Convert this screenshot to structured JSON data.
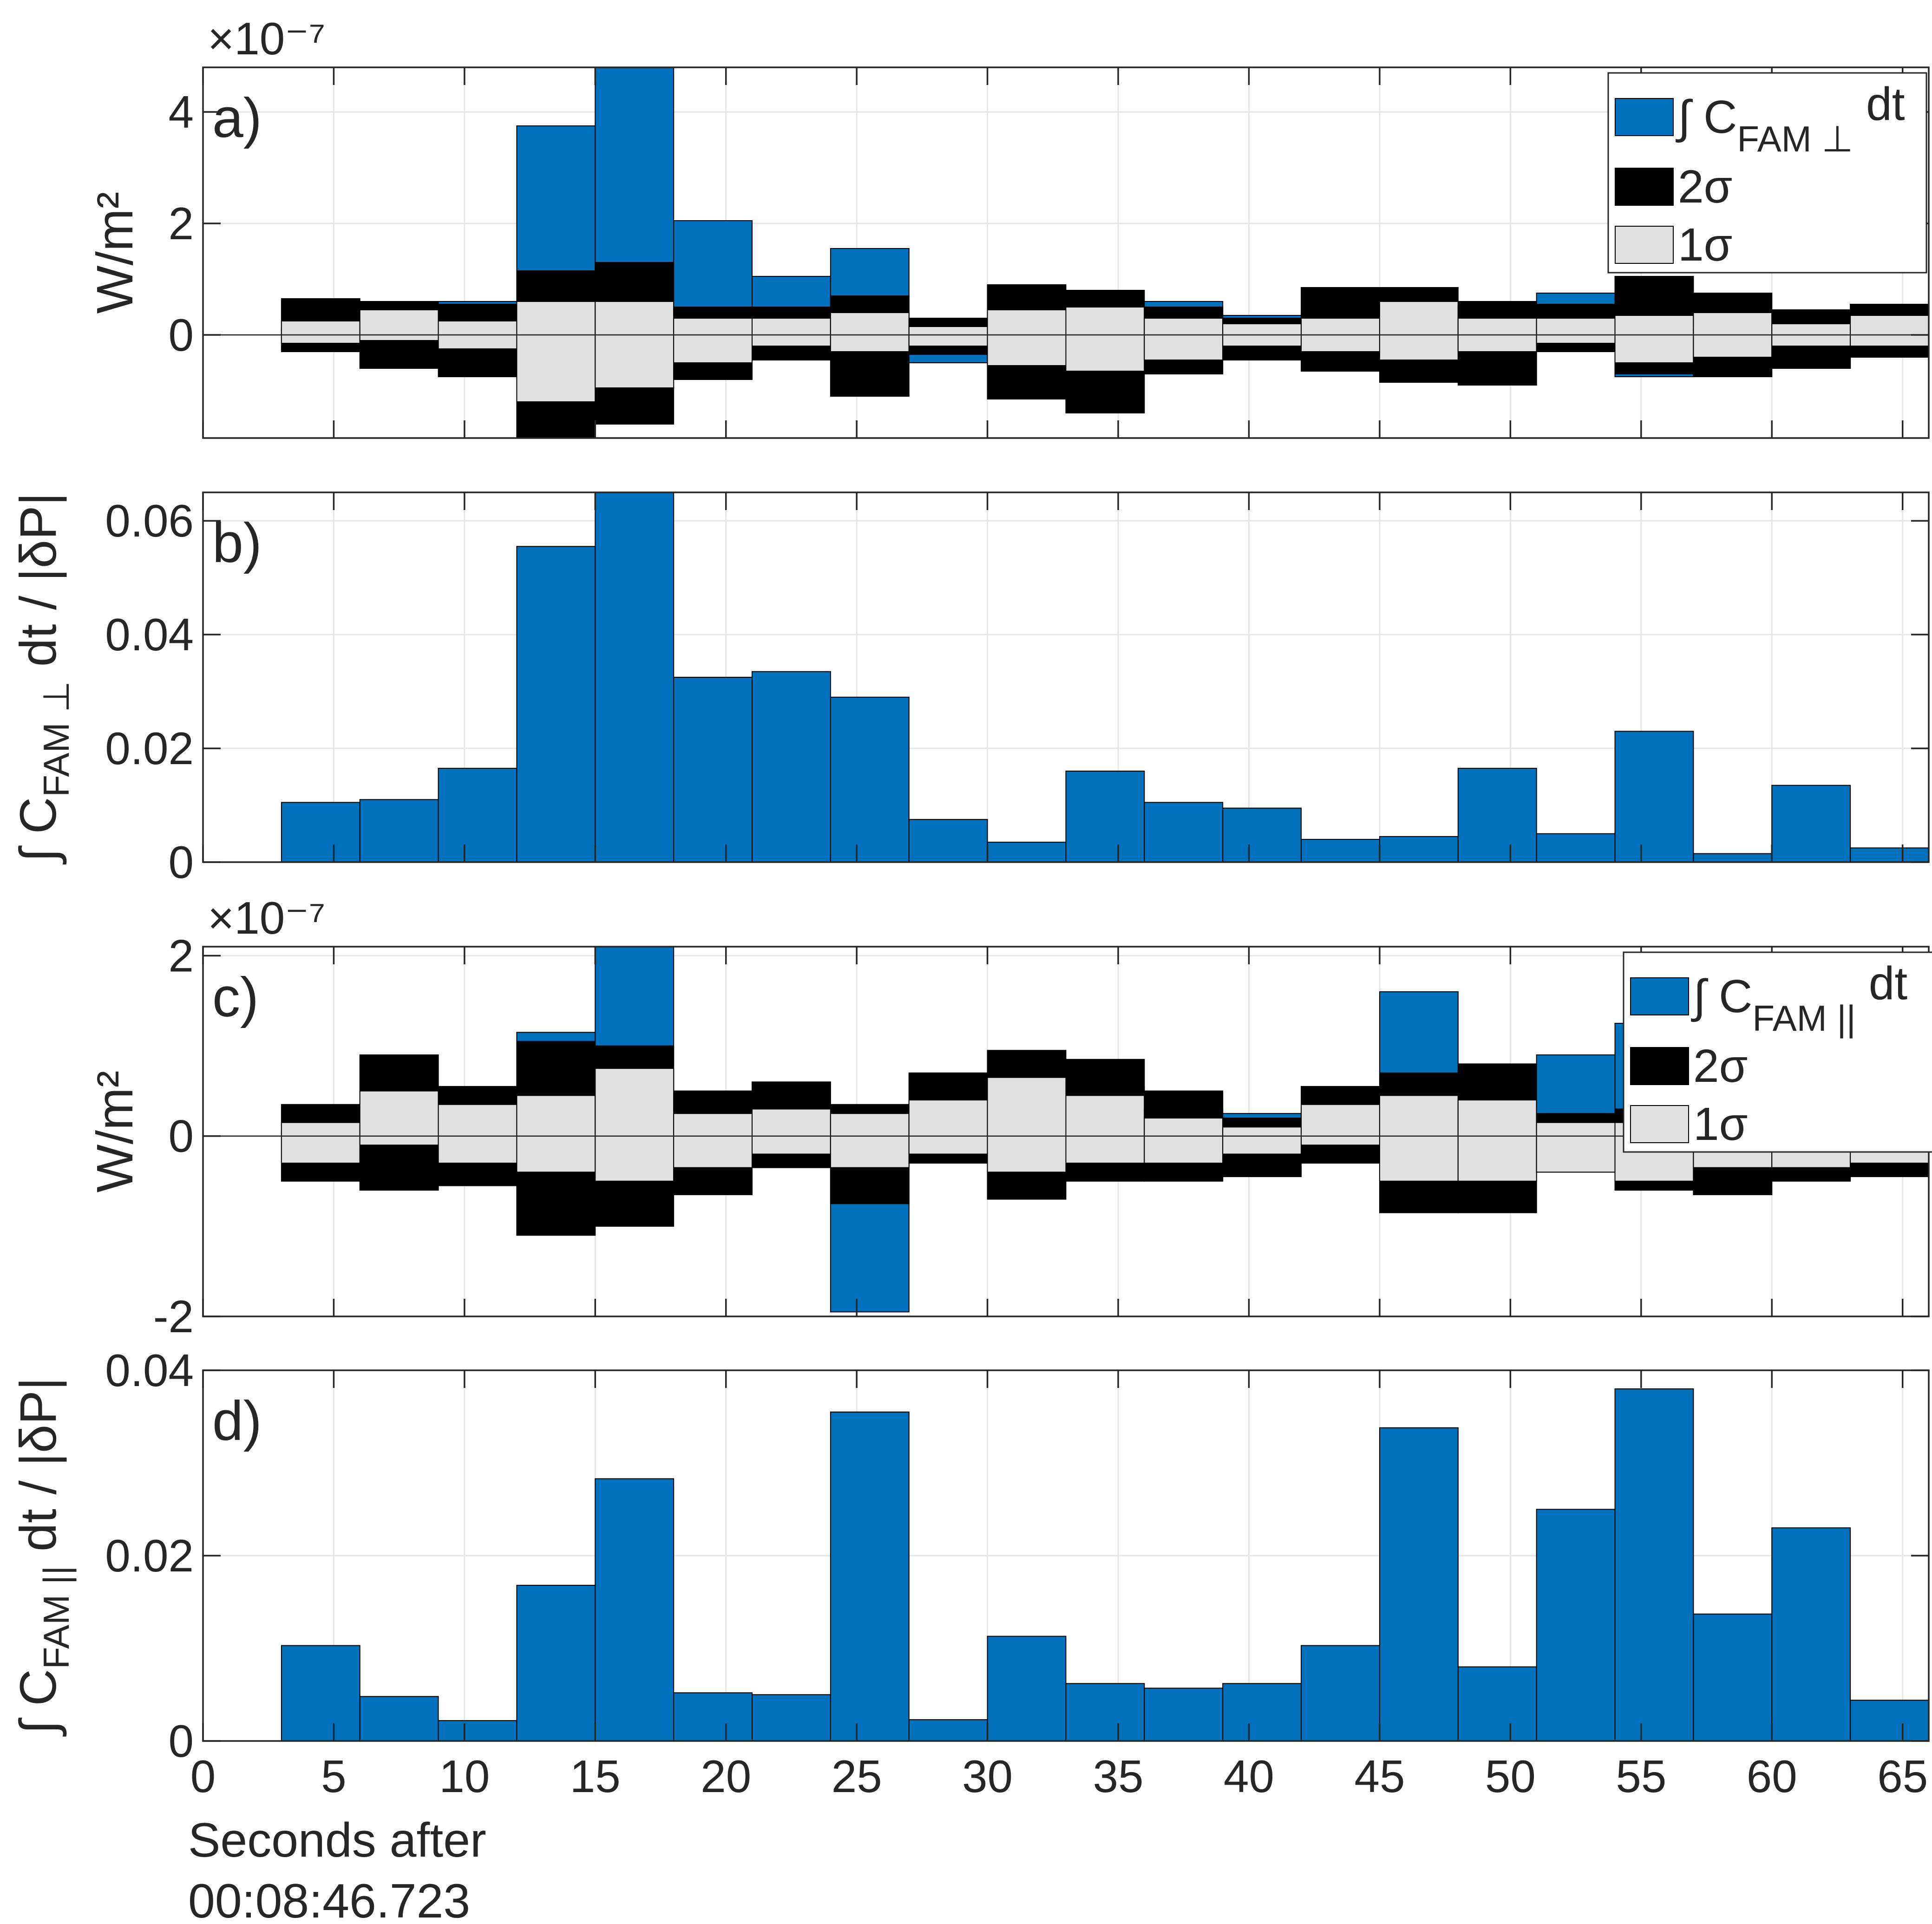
{
  "colors": {
    "flux": "#0072BD",
    "sigma2": "#000000",
    "sigma1": "#E0E0E0",
    "grid": "#E6E6E6",
    "axis": "#262626"
  },
  "chart_data": [
    {
      "type": "bar",
      "panel_label": "a)",
      "ylabel": "W/m²",
      "exponent_label": "×10⁻⁷",
      "xlim": [
        0,
        66
      ],
      "ylim": [
        -1.85,
        4.8
      ],
      "yticks": [
        0,
        2,
        4
      ],
      "ytick_labels": [
        "0",
        "2",
        "4"
      ],
      "bin_width": 3,
      "bin_starts": [
        3,
        6,
        9,
        12,
        15,
        18,
        21,
        24,
        27,
        30,
        33,
        36,
        39,
        42,
        45,
        48,
        51,
        54,
        57,
        60,
        63
      ],
      "values": [
        0.12,
        0.1,
        0.6,
        3.75,
        4.8,
        2.05,
        1.05,
        1.55,
        -0.5,
        0.3,
        0.25,
        0.6,
        0.35,
        0.2,
        -0.2,
        0.5,
        0.75,
        -0.75,
        0.1,
        -0.6,
        0.05
      ],
      "sigma2_upper": [
        0.65,
        0.6,
        0.55,
        1.15,
        1.3,
        0.5,
        0.5,
        0.7,
        0.3,
        0.9,
        0.8,
        0.5,
        0.3,
        0.85,
        0.85,
        0.6,
        0.55,
        1.05,
        0.75,
        0.45,
        0.55
      ],
      "sigma2_lower": [
        -0.3,
        -0.6,
        -0.75,
        -1.85,
        -1.6,
        -0.8,
        -0.45,
        -1.1,
        -0.35,
        -1.15,
        -1.4,
        -0.7,
        -0.45,
        -0.65,
        -0.85,
        -0.9,
        -0.3,
        -0.7,
        -0.75,
        -0.6,
        -0.4
      ],
      "sigma1_upper": [
        0.25,
        0.45,
        0.25,
        0.6,
        0.6,
        0.3,
        0.3,
        0.4,
        0.15,
        0.45,
        0.5,
        0.3,
        0.2,
        0.3,
        0.6,
        0.3,
        0.3,
        0.35,
        0.4,
        0.2,
        0.35
      ],
      "sigma1_lower": [
        -0.15,
        -0.1,
        -0.25,
        -1.2,
        -0.95,
        -0.5,
        -0.2,
        -0.3,
        -0.2,
        -0.55,
        -0.65,
        -0.45,
        -0.2,
        -0.3,
        -0.45,
        -0.3,
        -0.15,
        -0.5,
        -0.4,
        -0.2,
        -0.2
      ],
      "legend": {
        "flux": "∫ C",
        "flux_sub": "FAM ⊥",
        "flux_suffix": " dt",
        "sigma2": "2σ",
        "sigma1": "1σ",
        "position": "top-right"
      }
    },
    {
      "type": "bar",
      "panel_label": "b)",
      "ylabel_main": "∫ C",
      "ylabel_sub": "FAM ⊥",
      "ylabel_suffix": " dt / |δP|",
      "xlim": [
        0,
        66
      ],
      "ylim": [
        0,
        0.065
      ],
      "yticks": [
        0,
        0.02,
        0.04,
        0.06
      ],
      "ytick_labels": [
        "0",
        "0.02",
        "0.04",
        "0.06"
      ],
      "bin_width": 3,
      "bin_starts": [
        3,
        6,
        9,
        12,
        15,
        18,
        21,
        24,
        27,
        30,
        33,
        36,
        39,
        42,
        45,
        48,
        51,
        54,
        57,
        60,
        63
      ],
      "values": [
        0.0105,
        0.011,
        0.0165,
        0.0555,
        0.065,
        0.0325,
        0.0335,
        0.029,
        0.0075,
        0.0035,
        0.016,
        0.0105,
        0.0095,
        0.004,
        0.0045,
        0.0165,
        0.005,
        0.023,
        0.0015,
        0.0135,
        0.0025
      ]
    },
    {
      "type": "bar",
      "panel_label": "c)",
      "ylabel": "W/m²",
      "exponent_label": "×10⁻⁷",
      "xlim": [
        0,
        66
      ],
      "ylim": [
        -2.0,
        2.1
      ],
      "yticks": [
        -2,
        0,
        2
      ],
      "ytick_labels": [
        "-2",
        "0",
        "2"
      ],
      "bin_width": 3,
      "bin_starts": [
        3,
        6,
        9,
        12,
        15,
        18,
        21,
        24,
        27,
        30,
        33,
        36,
        39,
        42,
        45,
        48,
        51,
        54,
        57,
        60,
        63
      ],
      "values": [
        0.05,
        0.1,
        0.1,
        1.15,
        2.1,
        0.3,
        0.3,
        -1.95,
        0.2,
        0.35,
        0.55,
        0.3,
        0.25,
        0.25,
        1.6,
        0.4,
        0.9,
        1.25,
        0.4,
        0.2,
        0.2
      ],
      "sigma2_upper": [
        0.35,
        0.9,
        0.55,
        1.05,
        1.0,
        0.5,
        0.6,
        0.35,
        0.7,
        0.95,
        0.85,
        0.5,
        0.2,
        0.55,
        0.7,
        0.8,
        0.25,
        0.3,
        0.3,
        0.3,
        0.35
      ],
      "sigma2_lower": [
        -0.5,
        -0.6,
        -0.55,
        -1.1,
        -1.0,
        -0.65,
        -0.35,
        -0.75,
        -0.3,
        -0.7,
        -0.5,
        -0.5,
        -0.45,
        -0.3,
        -0.85,
        -0.85,
        -0.4,
        -0.6,
        -0.65,
        -0.5,
        -0.45
      ],
      "sigma1_upper": [
        0.15,
        0.5,
        0.35,
        0.45,
        0.75,
        0.25,
        0.3,
        0.25,
        0.4,
        0.65,
        0.45,
        0.2,
        0.1,
        0.35,
        0.45,
        0.4,
        0.15,
        0.15,
        0.15,
        0.15,
        0.2
      ],
      "sigma1_lower": [
        -0.3,
        -0.1,
        -0.3,
        -0.4,
        -0.5,
        -0.35,
        -0.2,
        -0.35,
        -0.2,
        -0.4,
        -0.3,
        -0.3,
        -0.2,
        -0.1,
        -0.5,
        -0.5,
        -0.4,
        -0.5,
        -0.35,
        -0.35,
        -0.3
      ],
      "legend": {
        "flux": "∫ C",
        "flux_sub": "FAM ||",
        "flux_suffix": " dt",
        "sigma2": "2σ",
        "sigma1": "1σ",
        "position": "top-right"
      }
    },
    {
      "type": "bar",
      "panel_label": "d)",
      "ylabel_main": "∫ C",
      "ylabel_sub": "FAM ||",
      "ylabel_suffix": " dt / |δP|",
      "xlim": [
        0,
        66
      ],
      "ylim": [
        0,
        0.04
      ],
      "yticks": [
        0,
        0.02,
        0.04
      ],
      "ytick_labels": [
        "0",
        "0.02",
        "0.04"
      ],
      "bin_width": 3,
      "bin_starts": [
        3,
        6,
        9,
        12,
        15,
        18,
        21,
        24,
        27,
        30,
        33,
        36,
        39,
        42,
        45,
        48,
        51,
        54,
        57,
        60,
        63
      ],
      "values": [
        0.0103,
        0.0048,
        0.0022,
        0.0168,
        0.0283,
        0.0052,
        0.005,
        0.0355,
        0.0023,
        0.0113,
        0.0062,
        0.0057,
        0.0062,
        0.0103,
        0.0338,
        0.008,
        0.025,
        0.038,
        0.0137,
        0.023,
        0.0044
      ],
      "xticks": [
        0,
        5,
        10,
        15,
        20,
        25,
        30,
        35,
        40,
        45,
        50,
        55,
        60,
        65
      ],
      "xtick_labels": [
        "0",
        "5",
        "10",
        "15",
        "20",
        "25",
        "30",
        "35",
        "40",
        "45",
        "50",
        "55",
        "60",
        "65"
      ],
      "xlabel_line1": "Seconds after",
      "xlabel_line2": "00:08:46.723"
    }
  ]
}
